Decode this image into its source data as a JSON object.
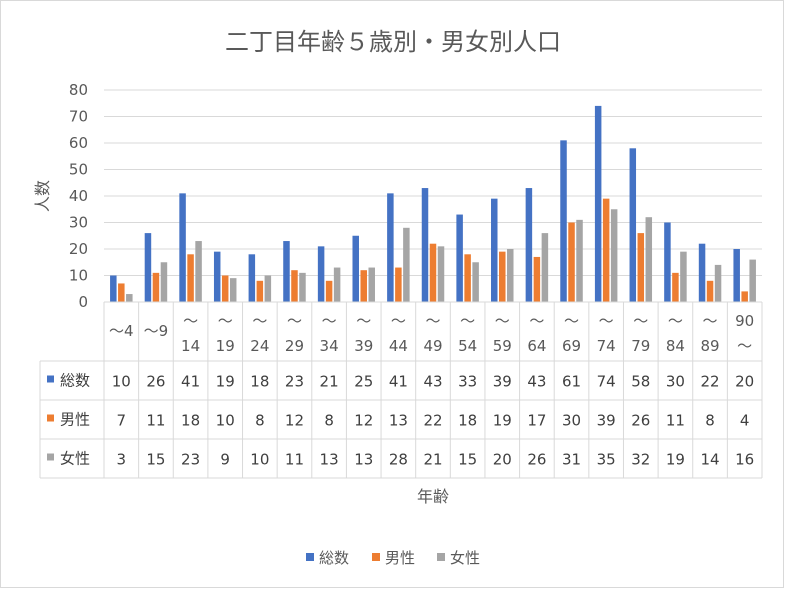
{
  "chart_data": {
    "type": "bar",
    "title": "二丁目年齢５歳別・男女別人口",
    "xlabel": "年齢",
    "ylabel": "人数",
    "ylim": [
      0,
      80
    ],
    "yticks": [
      0,
      10,
      20,
      30,
      40,
      50,
      60,
      70,
      80
    ],
    "grid": true,
    "legend_position": "bottom",
    "categories": [
      [
        "～4"
      ],
      [
        "～9"
      ],
      [
        "～",
        "14"
      ],
      [
        "～",
        "19"
      ],
      [
        "～",
        "24"
      ],
      [
        "～",
        "29"
      ],
      [
        "～",
        "34"
      ],
      [
        "～",
        "39"
      ],
      [
        "～",
        "44"
      ],
      [
        "～",
        "49"
      ],
      [
        "～",
        "54"
      ],
      [
        "～",
        "59"
      ],
      [
        "～",
        "64"
      ],
      [
        "～",
        "69"
      ],
      [
        "～",
        "74"
      ],
      [
        "～",
        "79"
      ],
      [
        "～",
        "84"
      ],
      [
        "～",
        "89"
      ],
      [
        "90",
        "～"
      ]
    ],
    "series": [
      {
        "name": "総数",
        "color": "#4472c4",
        "values": [
          10,
          26,
          41,
          19,
          18,
          23,
          21,
          25,
          41,
          43,
          33,
          39,
          43,
          61,
          74,
          58,
          30,
          22,
          20
        ]
      },
      {
        "name": "男性",
        "color": "#ed7d31",
        "values": [
          7,
          11,
          18,
          10,
          8,
          12,
          8,
          12,
          13,
          22,
          18,
          19,
          17,
          30,
          39,
          26,
          11,
          8,
          4
        ]
      },
      {
        "name": "女性",
        "color": "#a5a5a5",
        "values": [
          3,
          15,
          23,
          9,
          10,
          11,
          13,
          13,
          28,
          21,
          15,
          20,
          26,
          31,
          35,
          32,
          19,
          14,
          16
        ]
      }
    ]
  }
}
